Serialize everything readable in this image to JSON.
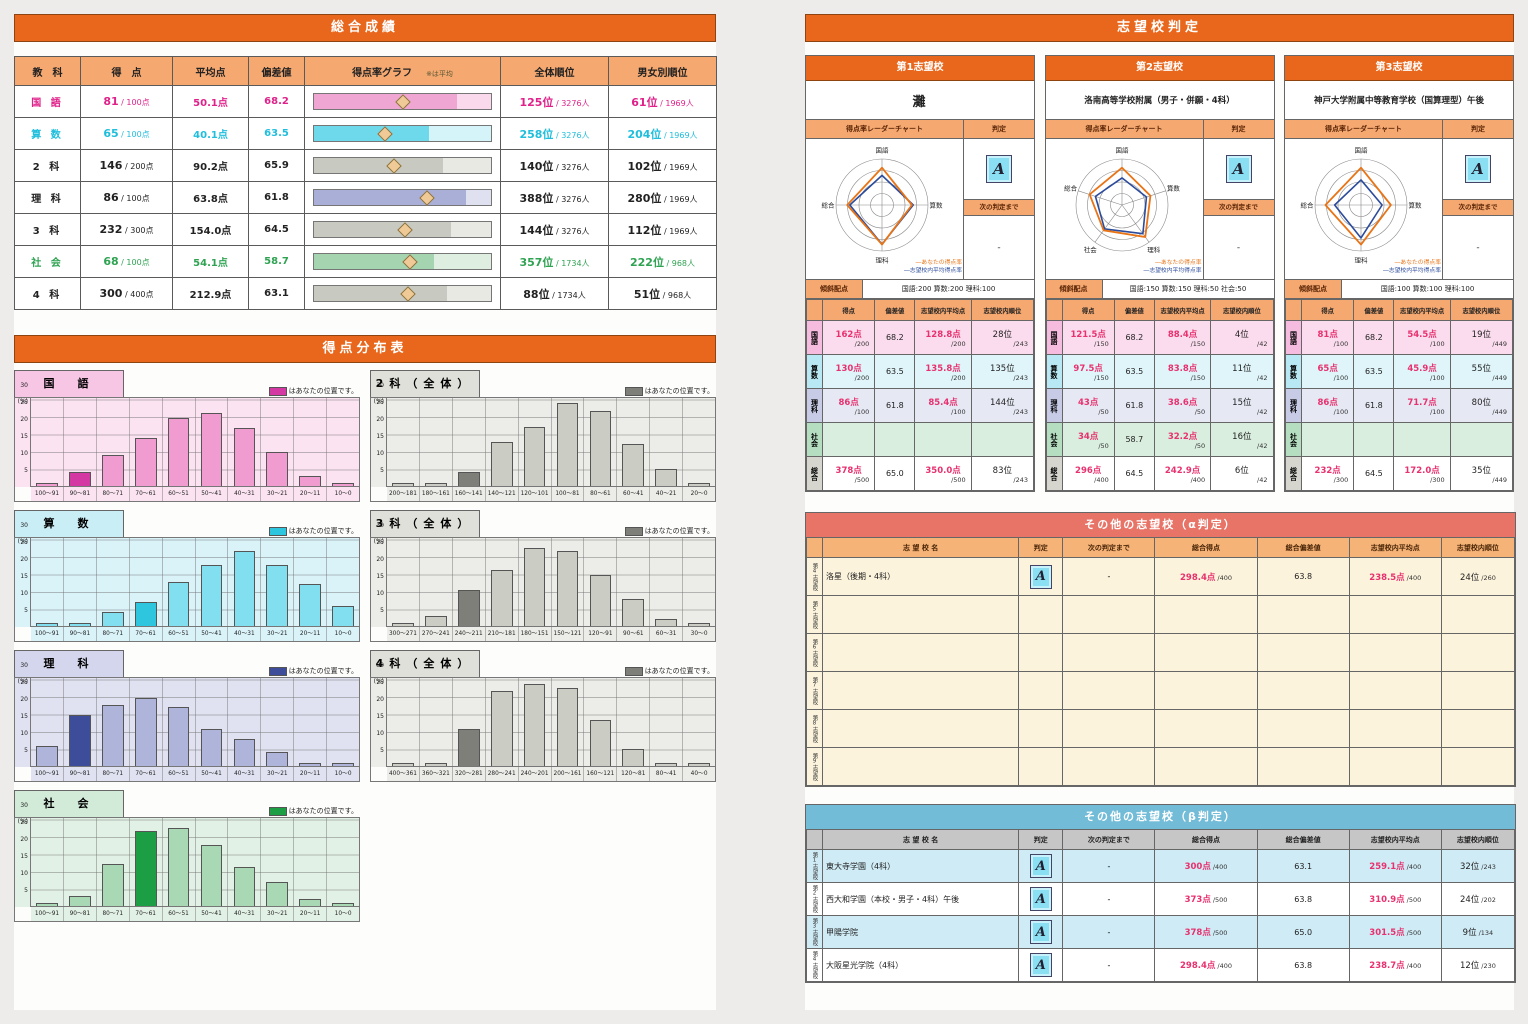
{
  "report": {
    "overall": {
      "title": "総合成績",
      "headers": [
        "教　科",
        "得　点",
        "平均点",
        "偏差値",
        "得点率グラフ",
        "全体順位",
        "男女別順位"
      ],
      "graph_note": "※は平均",
      "rows": [
        {
          "subject": "国 語",
          "score": "81",
          "max": "100点",
          "avg": "50.1点",
          "dev": "68.2",
          "rate": 81,
          "avg_rate": 50.1,
          "rank": "125位",
          "rank_den": "3276人",
          "grank": "61位",
          "grank_den": "1969人",
          "theme": "kokugo",
          "graph": "g-kokugo",
          "color": "c-kokugo"
        },
        {
          "subject": "算 数",
          "score": "65",
          "max": "100点",
          "avg": "40.1点",
          "dev": "63.5",
          "rate": 65,
          "avg_rate": 40.1,
          "rank": "258位",
          "rank_den": "3276人",
          "grank": "204位",
          "grank_den": "1969人",
          "theme": "sansu",
          "graph": "g-sansu",
          "color": "c-sansu"
        },
        {
          "subject": "2 科",
          "score": "146",
          "max": "200点",
          "avg": "90.2点",
          "dev": "65.9",
          "rate": 73,
          "avg_rate": 45.1,
          "rank": "140位",
          "rank_den": "3276人",
          "grank": "102位",
          "grank_den": "1969人",
          "theme": "nika",
          "graph": "g-gray",
          "color": "c-neutral"
        },
        {
          "subject": "理 科",
          "score": "86",
          "max": "100点",
          "avg": "63.8点",
          "dev": "61.8",
          "rate": 86,
          "avg_rate": 63.8,
          "rank": "388位",
          "rank_den": "3276人",
          "grank": "280位",
          "grank_den": "1969人",
          "theme": "rika",
          "graph": "g-rika",
          "color": "c-neutral"
        },
        {
          "subject": "3 科",
          "score": "232",
          "max": "300点",
          "avg": "154.0点",
          "dev": "64.5",
          "rate": 77.3,
          "avg_rate": 51.3,
          "rank": "144位",
          "rank_den": "3276人",
          "grank": "112位",
          "grank_den": "1969人",
          "theme": "sanka",
          "graph": "g-gray",
          "color": "c-neutral"
        },
        {
          "subject": "社 会",
          "score": "68",
          "max": "100点",
          "avg": "54.1点",
          "dev": "58.7",
          "rate": 68,
          "avg_rate": 54.1,
          "rank": "357位",
          "rank_den": "1734人",
          "grank": "222位",
          "grank_den": "968人",
          "theme": "shakai",
          "graph": "g-shakai",
          "color": "c-shakai"
        },
        {
          "subject": "4 科",
          "score": "300",
          "max": "400点",
          "avg": "212.9点",
          "dev": "63.1",
          "rate": 75,
          "avg_rate": 53.2,
          "rank": "88位",
          "rank_den": "1734人",
          "grank": "51位",
          "grank_den": "968人",
          "theme": "yonka",
          "graph": "g-gray",
          "color": "c-neutral"
        }
      ]
    },
    "distribution": {
      "title": "得点分布表",
      "legend_label": "はあなたの位置です。",
      "ylabel": "(%)",
      "yticks": [
        30,
        25,
        20,
        15,
        10,
        5
      ],
      "charts": [
        {
          "title": "国　語",
          "theme": "t-kokugo",
          "type": "bar",
          "col": 0,
          "row": 0,
          "categories": [
            "100～91",
            "90～81",
            "80～71",
            "70～61",
            "60～51",
            "50～41",
            "40～31",
            "30～21",
            "20～11",
            "10～0"
          ],
          "values": [
            1,
            4,
            9,
            14,
            20,
            21.5,
            17,
            10,
            3,
            1
          ],
          "highlight": 1
        },
        {
          "title": "算　数",
          "theme": "t-sansu",
          "type": "bar",
          "col": 0,
          "row": 1,
          "categories": [
            "100～91",
            "90～81",
            "80～71",
            "70～61",
            "60～51",
            "50～41",
            "40～31",
            "30～21",
            "20～11",
            "10～0"
          ],
          "values": [
            1,
            1,
            4,
            7,
            13,
            18,
            22,
            18,
            12.5,
            6
          ],
          "highlight": 3
        },
        {
          "title": "理　科",
          "theme": "t-rika",
          "type": "bar",
          "col": 0,
          "row": 2,
          "categories": [
            "100～91",
            "90～81",
            "80～71",
            "70～61",
            "60～51",
            "50～41",
            "40～31",
            "30～21",
            "20～11",
            "10～0"
          ],
          "values": [
            6,
            15,
            18,
            20,
            17.5,
            11,
            8,
            4,
            1,
            1
          ],
          "highlight": 1
        },
        {
          "title": "社　会",
          "theme": "t-shakai",
          "type": "bar",
          "col": 0,
          "row": 3,
          "categories": [
            "100～91",
            "90～81",
            "80～71",
            "70～61",
            "60～51",
            "50～41",
            "40～31",
            "30～21",
            "20～11",
            "10～0"
          ],
          "values": [
            1,
            3,
            12.5,
            22,
            23,
            18,
            11.5,
            7,
            2,
            1
          ],
          "highlight": 3
        },
        {
          "title": "2科（全体）",
          "theme": "t-gray",
          "type": "bar",
          "col": 1,
          "row": 0,
          "categories": [
            "200～181",
            "180～161",
            "160～141",
            "140～121",
            "120～101",
            "100～81",
            "80～61",
            "60～41",
            "40～21",
            "20～0"
          ],
          "values": [
            1,
            1,
            4,
            13,
            17.5,
            24.5,
            22,
            12.5,
            5,
            1
          ],
          "highlight": 2
        },
        {
          "title": "3科（全体）",
          "theme": "t-gray",
          "type": "bar",
          "col": 1,
          "row": 1,
          "categories": [
            "300～271",
            "270～241",
            "240～211",
            "210～181",
            "180～151",
            "150～121",
            "120～91",
            "90～61",
            "60～31",
            "30～0"
          ],
          "values": [
            1,
            3,
            10.5,
            16.5,
            23,
            22,
            15,
            8,
            2,
            1
          ],
          "highlight": 2
        },
        {
          "title": "4科（全体）",
          "theme": "t-gray",
          "type": "bar",
          "col": 1,
          "row": 2,
          "categories": [
            "400～361",
            "360～321",
            "320～281",
            "280～241",
            "240～201",
            "200～161",
            "160～121",
            "120～81",
            "80～41",
            "40～0"
          ],
          "values": [
            1,
            1,
            11,
            22,
            24,
            23,
            13.5,
            5,
            1,
            1
          ],
          "highlight": 2
        }
      ]
    },
    "judgement": {
      "title": "志望校判定",
      "radar_header": "得点率レーダーチャート",
      "judge_header": "判定",
      "next_header": "次の判定まで",
      "next_value": "-",
      "haiten_label": "傾斜配点",
      "legend_user": "―あなたの得点率",
      "legend_avg": "―志望校内平均得点率",
      "grade": "A",
      "table_headers": [
        "得点",
        "偏差値",
        "志望校内平均点",
        "志望校内順位"
      ],
      "schools": [
        {
          "rank_label": "第1志望校",
          "name": "灘",
          "big_name": true,
          "haiten": "国語:200 算数:200 理科:100",
          "radar": {
            "axes": [
              "国語",
              "算数",
              "理科",
              "総合"
            ],
            "user": [
              81,
              65,
              86,
              75.6
            ],
            "avg": [
              64.4,
              67.9,
              85.4,
              70
            ]
          },
          "rows": [
            {
              "subject": "国語",
              "theme": "r-kokugo",
              "score": "162点",
              "max": "/200",
              "dev": "68.2",
              "avg": "128.8点",
              "avg_max": "/200",
              "rank": "28位",
              "rank_max": "/243",
              "empty": false
            },
            {
              "subject": "算数",
              "theme": "r-sansu",
              "score": "130点",
              "max": "/200",
              "dev": "63.5",
              "avg": "135.8点",
              "avg_max": "/200",
              "rank": "135位",
              "rank_max": "/243",
              "empty": false
            },
            {
              "subject": "理科",
              "theme": "r-rika",
              "score": "86点",
              "max": "/100",
              "dev": "61.8",
              "avg": "85.4点",
              "avg_max": "/100",
              "rank": "144位",
              "rank_max": "/243",
              "empty": false
            },
            {
              "subject": "社会",
              "theme": "r-shakai",
              "empty": true
            },
            {
              "subject": "総合",
              "theme": "r-sogo",
              "score": "378点",
              "max": "/500",
              "dev": "65.0",
              "avg": "350.0点",
              "avg_max": "/500",
              "rank": "83位",
              "rank_max": "/243",
              "empty": false
            }
          ]
        },
        {
          "rank_label": "第2志望校",
          "name": "洛南高等学校附属（男子・併願・4科）",
          "big_name": false,
          "haiten": "国語:150 算数:150 理科:50 社会:50",
          "radar": {
            "axes": [
              "国語",
              "算数",
              "理科",
              "社会",
              "総合"
            ],
            "user": [
              81,
              65,
              86,
              68,
              74
            ],
            "avg": [
              58.9,
              55.9,
              77.2,
              64.4,
              60.7
            ]
          },
          "rows": [
            {
              "subject": "国語",
              "theme": "r-kokugo",
              "score": "121.5点",
              "max": "/150",
              "dev": "68.2",
              "avg": "88.4点",
              "avg_max": "/150",
              "rank": "4位",
              "rank_max": "/42",
              "empty": false
            },
            {
              "subject": "算数",
              "theme": "r-sansu",
              "score": "97.5点",
              "max": "/150",
              "dev": "63.5",
              "avg": "83.8点",
              "avg_max": "/150",
              "rank": "11位",
              "rank_max": "/42",
              "empty": false
            },
            {
              "subject": "理科",
              "theme": "r-rika",
              "score": "43点",
              "max": "/50",
              "dev": "61.8",
              "avg": "38.6点",
              "avg_max": "/50",
              "rank": "15位",
              "rank_max": "/42",
              "empty": false
            },
            {
              "subject": "社会",
              "theme": "r-shakai",
              "score": "34点",
              "max": "/50",
              "dev": "58.7",
              "avg": "32.2点",
              "avg_max": "/50",
              "rank": "16位",
              "rank_max": "/42",
              "empty": false
            },
            {
              "subject": "総合",
              "theme": "r-sogo",
              "score": "296点",
              "max": "/400",
              "dev": "64.5",
              "avg": "242.9点",
              "avg_max": "/400",
              "rank": "6位",
              "rank_max": "/42",
              "empty": false
            }
          ]
        },
        {
          "rank_label": "第3志望校",
          "name": "神戸大学附属中等教育学校（国算理型）午後",
          "big_name": false,
          "haiten": "国語:100 算数:100 理科:100",
          "radar": {
            "axes": [
              "国語",
              "算数",
              "理科",
              "総合"
            ],
            "user": [
              81,
              65,
              86,
              77.3
            ],
            "avg": [
              54.5,
              45.9,
              71.7,
              57.3
            ]
          },
          "rows": [
            {
              "subject": "国語",
              "theme": "r-kokugo",
              "score": "81点",
              "max": "/100",
              "dev": "68.2",
              "avg": "54.5点",
              "avg_max": "/100",
              "rank": "19位",
              "rank_max": "/449",
              "empty": false
            },
            {
              "subject": "算数",
              "theme": "r-sansu",
              "score": "65点",
              "max": "/100",
              "dev": "63.5",
              "avg": "45.9点",
              "avg_max": "/100",
              "rank": "55位",
              "rank_max": "/449",
              "empty": false
            },
            {
              "subject": "理科",
              "theme": "r-rika",
              "score": "86点",
              "max": "/100",
              "dev": "61.8",
              "avg": "71.7点",
              "avg_max": "/100",
              "rank": "80位",
              "rank_max": "/449",
              "empty": false
            },
            {
              "subject": "社会",
              "theme": "r-shakai",
              "empty": true
            },
            {
              "subject": "総合",
              "theme": "r-sogo",
              "score": "232点",
              "max": "/300",
              "dev": "64.5",
              "avg": "172.0点",
              "avg_max": "/300",
              "rank": "35位",
              "rank_max": "/449",
              "empty": false
            }
          ]
        }
      ]
    },
    "alpha": {
      "title": "その他の志望校（α判定）",
      "headers": [
        "志 望 校 名",
        "判定",
        "次の判定まで",
        "総合得点",
        "総合偏差値",
        "志望校内平均点",
        "志望校内順位"
      ],
      "rows": [
        {
          "label": "第4志望校",
          "name": "洛星（後期・4科）",
          "judge": "A",
          "next": "-",
          "score": "298.4点",
          "score_max": "/400",
          "dev": "63.8",
          "avg": "238.5点",
          "avg_max": "/400",
          "rank": "24位",
          "rank_max": "/260",
          "filled": true
        },
        {
          "label": "第5志望校",
          "filled": false
        },
        {
          "label": "第6志望校",
          "filled": false
        },
        {
          "label": "第7志望校",
          "filled": false
        },
        {
          "label": "第8志望校",
          "filled": false
        },
        {
          "label": "第9志望校",
          "filled": false
        }
      ]
    },
    "beta": {
      "title": "その他の志望校（β判定）",
      "headers": [
        "志 望 校 名",
        "判定",
        "次の判定まで",
        "総合得点",
        "総合偏差値",
        "志望校内平均点",
        "志望校内順位"
      ],
      "rows": [
        {
          "label": "第1志望校",
          "name": "東大寺学園（4科）",
          "judge": "A",
          "next": "-",
          "score": "300点",
          "score_max": "/400",
          "dev": "63.1",
          "avg": "259.1点",
          "avg_max": "/400",
          "rank": "32位",
          "rank_max": "/243",
          "filled": true
        },
        {
          "label": "第2志望校",
          "name": "西大和学園（本校・男子・4科）午後",
          "judge": "A",
          "next": "-",
          "score": "373点",
          "score_max": "/500",
          "dev": "63.8",
          "avg": "310.9点",
          "avg_max": "/500",
          "rank": "24位",
          "rank_max": "/202",
          "filled": true
        },
        {
          "label": "第3志望校",
          "name": "甲陽学院",
          "judge": "A",
          "next": "-",
          "score": "378点",
          "score_max": "/500",
          "dev": "65.0",
          "avg": "301.5点",
          "avg_max": "/500",
          "rank": "9位",
          "rank_max": "/134",
          "filled": true
        },
        {
          "label": "第4志望校",
          "name": "大阪星光学院（4科）",
          "judge": "A",
          "next": "-",
          "score": "298.4点",
          "score_max": "/400",
          "dev": "63.8",
          "avg": "238.7点",
          "avg_max": "/400",
          "rank": "12位",
          "rank_max": "/230",
          "filled": true
        }
      ]
    }
  }
}
